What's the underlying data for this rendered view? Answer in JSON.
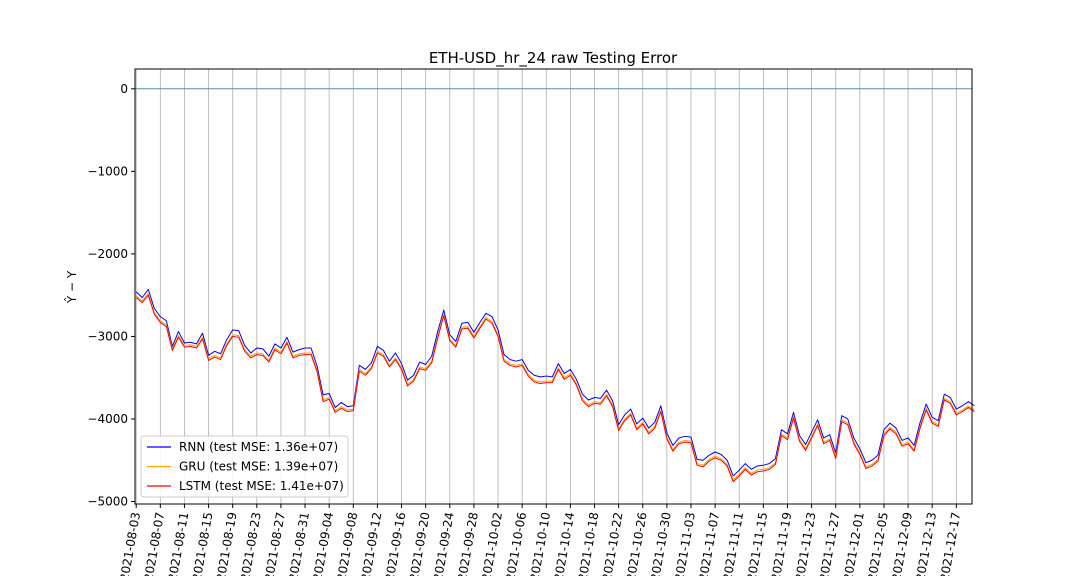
{
  "chart_data": {
    "type": "line",
    "title": "ETH-USD_hr_24 raw Testing Error",
    "xlabel": "",
    "ylabel": "Ŷ − Y",
    "ylim": [
      -5030,
      240
    ],
    "y_ticks": [
      0,
      -1000,
      -2000,
      -3000,
      -4000,
      -5000
    ],
    "y_tick_labels": [
      "0",
      "−1000",
      "−2000",
      "−3000",
      "−4000",
      "−5000"
    ],
    "x_range": [
      "2021-08-03",
      "2021-12-19"
    ],
    "x_ticks": [
      "2021-08-03",
      "2021-08-07",
      "2021-08-11",
      "2021-08-15",
      "2021-08-19",
      "2021-08-23",
      "2021-08-27",
      "2021-08-31",
      "2021-09-04",
      "2021-09-08",
      "2021-09-12",
      "2021-09-16",
      "2021-09-20",
      "2021-09-24",
      "2021-09-28",
      "2021-10-02",
      "2021-10-06",
      "2021-10-10",
      "2021-10-14",
      "2021-10-18",
      "2021-10-22",
      "2021-10-26",
      "2021-10-30",
      "2021-11-03",
      "2021-11-07",
      "2021-11-11",
      "2021-11-15",
      "2021-11-19",
      "2021-11-23",
      "2021-11-27",
      "2021-12-01",
      "2021-12-05",
      "2021-12-09",
      "2021-12-13",
      "2021-12-17"
    ],
    "grid": {
      "x": true,
      "y": false
    },
    "zero_line": {
      "value": 0,
      "color": "#5a8fa8"
    },
    "legend_position": "lower-left",
    "x_start": "2021-08-03",
    "x_step_days": 1,
    "series": [
      {
        "name": "RNN (test MSE: 1.36e+07)",
        "color": "#0000ff",
        "values": [
          -2460,
          -2530,
          -2430,
          -2660,
          -2760,
          -2810,
          -3120,
          -2940,
          -3080,
          -3070,
          -3090,
          -2960,
          -3230,
          -3180,
          -3210,
          -3040,
          -2920,
          -2930,
          -3110,
          -3200,
          -3140,
          -3150,
          -3240,
          -3090,
          -3140,
          -3010,
          -3190,
          -3160,
          -3140,
          -3140,
          -3360,
          -3710,
          -3690,
          -3860,
          -3800,
          -3850,
          -3840,
          -3350,
          -3400,
          -3320,
          -3120,
          -3170,
          -3300,
          -3200,
          -3330,
          -3530,
          -3470,
          -3310,
          -3340,
          -3240,
          -2940,
          -2680,
          -2980,
          -3060,
          -2840,
          -2830,
          -2950,
          -2830,
          -2720,
          -2760,
          -2920,
          -3220,
          -3280,
          -3300,
          -3280,
          -3410,
          -3470,
          -3490,
          -3480,
          -3490,
          -3330,
          -3450,
          -3400,
          -3520,
          -3700,
          -3770,
          -3740,
          -3750,
          -3650,
          -3780,
          -4070,
          -3950,
          -3880,
          -4060,
          -3990,
          -4110,
          -4040,
          -3840,
          -4170,
          -4320,
          -4230,
          -4210,
          -4220,
          -4490,
          -4500,
          -4440,
          -4400,
          -4430,
          -4500,
          -4690,
          -4620,
          -4540,
          -4610,
          -4570,
          -4560,
          -4540,
          -4480,
          -4130,
          -4180,
          -3920,
          -4200,
          -4310,
          -4160,
          -4010,
          -4230,
          -4190,
          -4410,
          -3960,
          -4000,
          -4230,
          -4360,
          -4530,
          -4500,
          -4440,
          -4130,
          -4050,
          -4110,
          -4260,
          -4230,
          -4320,
          -4040,
          -3820,
          -3980,
          -4020,
          -3700,
          -3740,
          -3880,
          -3840,
          -3790,
          -3840
        ]
      },
      {
        "name": "GRU (test MSE: 1.39e+07)",
        "color": "#ffa500",
        "values": [
          -2510,
          -2570,
          -2480,
          -2710,
          -2810,
          -2860,
          -3150,
          -2990,
          -3110,
          -3100,
          -3120,
          -3010,
          -3270,
          -3230,
          -3260,
          -3090,
          -2980,
          -2990,
          -3160,
          -3240,
          -3200,
          -3210,
          -3290,
          -3140,
          -3190,
          -3060,
          -3240,
          -3210,
          -3200,
          -3200,
          -3410,
          -3770,
          -3740,
          -3900,
          -3850,
          -3890,
          -3880,
          -3400,
          -3450,
          -3370,
          -3180,
          -3220,
          -3350,
          -3260,
          -3380,
          -3580,
          -3520,
          -3370,
          -3390,
          -3300,
          -3000,
          -2730,
          -3030,
          -3110,
          -2890,
          -2880,
          -3000,
          -2880,
          -2770,
          -2820,
          -2980,
          -3280,
          -3330,
          -3350,
          -3330,
          -3460,
          -3530,
          -3550,
          -3540,
          -3540,
          -3380,
          -3500,
          -3450,
          -3570,
          -3760,
          -3830,
          -3790,
          -3800,
          -3700,
          -3830,
          -4120,
          -4000,
          -3930,
          -4110,
          -4040,
          -4160,
          -4090,
          -3890,
          -4220,
          -4370,
          -4280,
          -4260,
          -4270,
          -4540,
          -4560,
          -4490,
          -4450,
          -4480,
          -4550,
          -4740,
          -4670,
          -4590,
          -4660,
          -4620,
          -4610,
          -4590,
          -4530,
          -4180,
          -4230,
          -3970,
          -4250,
          -4360,
          -4210,
          -4060,
          -4280,
          -4240,
          -4460,
          -4010,
          -4050,
          -4280,
          -4410,
          -4580,
          -4550,
          -4490,
          -4180,
          -4100,
          -4160,
          -4310,
          -4280,
          -4370,
          -4090,
          -3870,
          -4030,
          -4070,
          -3750,
          -3790,
          -3930,
          -3890,
          -3840,
          -3890
        ]
      },
      {
        "name": "LSTM (test MSE: 1.41e+07)",
        "color": "#ff0000",
        "values": [
          -2530,
          -2590,
          -2500,
          -2730,
          -2830,
          -2880,
          -3170,
          -3010,
          -3130,
          -3120,
          -3140,
          -3030,
          -3290,
          -3250,
          -3280,
          -3110,
          -3000,
          -3010,
          -3180,
          -3260,
          -3220,
          -3230,
          -3310,
          -3160,
          -3210,
          -3080,
          -3260,
          -3230,
          -3220,
          -3220,
          -3430,
          -3790,
          -3760,
          -3920,
          -3870,
          -3910,
          -3900,
          -3420,
          -3470,
          -3390,
          -3200,
          -3240,
          -3370,
          -3280,
          -3400,
          -3600,
          -3540,
          -3390,
          -3410,
          -3320,
          -3020,
          -2750,
          -3050,
          -3130,
          -2910,
          -2900,
          -3020,
          -2900,
          -2790,
          -2840,
          -3000,
          -3300,
          -3350,
          -3370,
          -3350,
          -3480,
          -3550,
          -3570,
          -3560,
          -3560,
          -3400,
          -3520,
          -3470,
          -3590,
          -3780,
          -3850,
          -3810,
          -3820,
          -3720,
          -3850,
          -4140,
          -4020,
          -3950,
          -4130,
          -4060,
          -4180,
          -4110,
          -3910,
          -4240,
          -4390,
          -4300,
          -4280,
          -4290,
          -4560,
          -4580,
          -4510,
          -4470,
          -4500,
          -4570,
          -4760,
          -4690,
          -4610,
          -4680,
          -4640,
          -4630,
          -4610,
          -4550,
          -4200,
          -4250,
          -3990,
          -4270,
          -4380,
          -4230,
          -4080,
          -4300,
          -4260,
          -4480,
          -4030,
          -4070,
          -4300,
          -4430,
          -4600,
          -4570,
          -4510,
          -4200,
          -4120,
          -4180,
          -4330,
          -4300,
          -4390,
          -4110,
          -3890,
          -4050,
          -4090,
          -3770,
          -3810,
          -3950,
          -3910,
          -3860,
          -3910
        ]
      }
    ]
  }
}
